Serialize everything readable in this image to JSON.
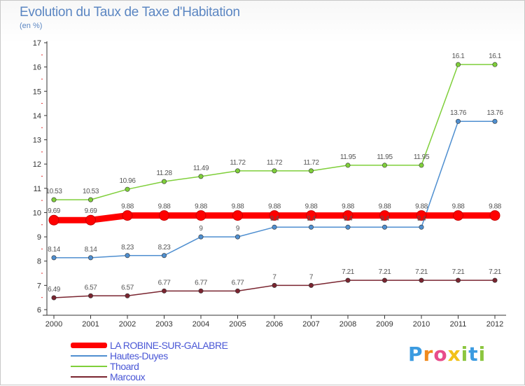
{
  "title": "Evolution du Taux de Taxe d'Habitation",
  "subtitle": "(en %)",
  "brand": {
    "text": "Proxiti",
    "letters": [
      {
        "ch": "P",
        "color": "#3b9be0"
      },
      {
        "ch": "r",
        "color": "#f08a1c"
      },
      {
        "ch": "o",
        "color": "#e84c8b"
      },
      {
        "ch": "x",
        "color": "#f2c11a"
      },
      {
        "ch": "i",
        "color": "#8cc63f"
      },
      {
        "ch": "t",
        "color": "#3b9be0"
      },
      {
        "ch": "i",
        "color": "#8cc63f"
      }
    ]
  },
  "chart_data": {
    "type": "line",
    "title": "Evolution du Taux de Taxe d'Habitation",
    "subtitle": "(en %)",
    "ylim": [
      6,
      17
    ],
    "yticks": [
      6,
      7,
      8,
      9,
      10,
      11,
      12,
      13,
      14,
      15,
      16,
      17
    ],
    "ytick_labels": [
      "6",
      "7",
      "8",
      "9",
      "10",
      "11",
      "12",
      "13",
      "14",
      "15",
      "16",
      "17"
    ],
    "x": [
      "2000",
      "2001",
      "2002",
      "2003",
      "2004",
      "2005",
      "2006",
      "2007",
      "2008",
      "2009",
      "2010",
      "2011",
      "2012"
    ],
    "grid": false,
    "legend_position": "bottom-left",
    "series": [
      {
        "name": "LA ROBINE-SUR-GALABRE",
        "color": "#ff0000",
        "values": [
          9.69,
          9.69,
          9.88,
          9.88,
          9.88,
          9.88,
          9.88,
          9.88,
          9.88,
          9.88,
          9.88,
          9.88,
          9.88
        ],
        "labels": [
          "9.69",
          "9.69",
          "9.88",
          "9.88",
          "9.88",
          "9.88",
          "9.88",
          "9.88",
          "9.88",
          "9.88",
          "9.88",
          "9.88",
          "9.88"
        ]
      },
      {
        "name": "Hautes-Duyes",
        "color": "#4f8fd0",
        "values": [
          8.14,
          8.14,
          8.23,
          8.23,
          9,
          9,
          9.4,
          9.4,
          9.4,
          9.4,
          9.4,
          13.76,
          13.76
        ],
        "labels": [
          "8.14",
          "8.14",
          "8.23",
          "8.23",
          "9",
          "9",
          "9.4",
          "9.4",
          "9.4",
          "9.4",
          "9.4",
          "13.76",
          "13.76"
        ]
      },
      {
        "name": "Thoard",
        "color": "#7fcf3a",
        "values": [
          10.53,
          10.53,
          10.96,
          11.28,
          11.49,
          11.72,
          11.72,
          11.72,
          11.95,
          11.95,
          11.95,
          16.1,
          16.1
        ],
        "labels": [
          "10.53",
          "10.53",
          "10.96",
          "11.28",
          "11.49",
          "11.72",
          "11.72",
          "11.72",
          "11.95",
          "11.95",
          "11.95",
          "16.1",
          "16.1"
        ]
      },
      {
        "name": "Marcoux",
        "color": "#7a2530",
        "values": [
          6.49,
          6.57,
          6.57,
          6.77,
          6.77,
          6.77,
          7,
          7,
          7.21,
          7.21,
          7.21,
          7.21,
          7.21
        ],
        "labels": [
          "6.49",
          "6.57",
          "6.57",
          "6.77",
          "6.77",
          "6.77",
          "7",
          "7",
          "7.21",
          "7.21",
          "7.21",
          "7.21",
          "7.21"
        ]
      }
    ]
  },
  "legend": [
    {
      "label": "LA ROBINE-SUR-GALABRE",
      "color": "#ff0000"
    },
    {
      "label": "Hautes-Duyes",
      "color": "#4f8fd0"
    },
    {
      "label": "Thoard",
      "color": "#7fcf3a"
    },
    {
      "label": "Marcoux",
      "color": "#7a2530"
    }
  ]
}
